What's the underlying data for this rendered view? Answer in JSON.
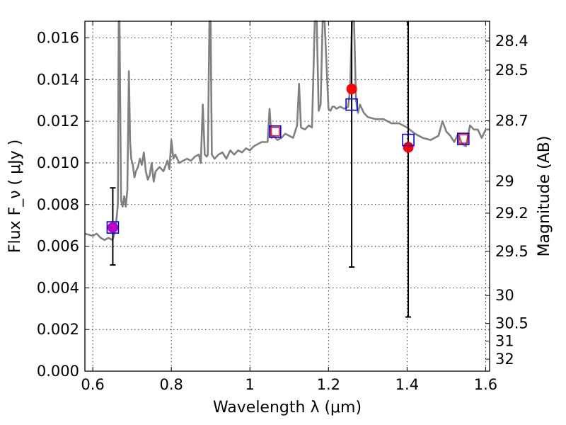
{
  "chart_data": {
    "type": "scatter",
    "xlabel": "Wavelength  λ (μm)",
    "ylabel": "Flux  F_ν  ( μJy )",
    "y2label": "Magnitude (AB)",
    "xlim": [
      0.58,
      1.61
    ],
    "ylim": [
      0.0,
      0.0168
    ],
    "grid": true,
    "x_ticks": [
      {
        "value": 0.6,
        "label": "0.6"
      },
      {
        "value": 0.8,
        "label": "0.8"
      },
      {
        "value": 1.0,
        "label": "1"
      },
      {
        "value": 1.2,
        "label": "1.2"
      },
      {
        "value": 1.4,
        "label": "1.4"
      },
      {
        "value": 1.6,
        "label": "1.6"
      }
    ],
    "y_ticks": [
      {
        "value": 0.0,
        "label": "0.000"
      },
      {
        "value": 0.002,
        "label": "0.002"
      },
      {
        "value": 0.004,
        "label": "0.004"
      },
      {
        "value": 0.006,
        "label": "0.006"
      },
      {
        "value": 0.008,
        "label": "0.008"
      },
      {
        "value": 0.01,
        "label": "0.010"
      },
      {
        "value": 0.012,
        "label": "0.012"
      },
      {
        "value": 0.014,
        "label": "0.014"
      },
      {
        "value": 0.016,
        "label": "0.016"
      }
    ],
    "y2_ticks": [
      {
        "value": 28.4,
        "label": "28.4"
      },
      {
        "value": 28.5,
        "label": "28.5"
      },
      {
        "value": 28.7,
        "label": "28.7"
      },
      {
        "value": 29.0,
        "label": "29"
      },
      {
        "value": 29.2,
        "label": "29.2"
      },
      {
        "value": 29.5,
        "label": "29.5"
      },
      {
        "value": 30.0,
        "label": "30"
      },
      {
        "value": 30.5,
        "label": "30.5"
      },
      {
        "value": 31.0,
        "label": "31"
      },
      {
        "value": 32.0,
        "label": "32"
      }
    ],
    "model_spectrum": {
      "color": "#808080",
      "x": [
        0.58,
        0.6,
        0.61,
        0.62,
        0.63,
        0.64,
        0.65,
        0.655,
        0.66,
        0.664,
        0.666,
        0.668,
        0.672,
        0.676,
        0.68,
        0.684,
        0.688,
        0.692,
        0.695,
        0.698,
        0.702,
        0.706,
        0.71,
        0.715,
        0.72,
        0.725,
        0.73,
        0.735,
        0.74,
        0.745,
        0.75,
        0.755,
        0.76,
        0.77,
        0.78,
        0.79,
        0.795,
        0.8,
        0.805,
        0.81,
        0.82,
        0.83,
        0.84,
        0.85,
        0.86,
        0.87,
        0.875,
        0.88,
        0.885,
        0.89,
        0.893,
        0.897,
        0.9,
        0.903,
        0.91,
        0.92,
        0.93,
        0.94,
        0.95,
        0.96,
        0.97,
        0.98,
        0.99,
        1.0,
        1.01,
        1.02,
        1.03,
        1.045,
        1.05,
        1.055,
        1.06,
        1.07,
        1.08,
        1.09,
        1.1,
        1.11,
        1.12,
        1.125,
        1.13,
        1.14,
        1.15,
        1.158,
        1.165,
        1.17,
        1.175,
        1.18,
        1.185,
        1.19,
        1.2,
        1.205,
        1.21,
        1.215,
        1.22,
        1.23,
        1.24,
        1.25,
        1.255,
        1.26,
        1.265,
        1.27,
        1.275,
        1.28,
        1.29,
        1.3,
        1.32,
        1.34,
        1.36,
        1.38,
        1.4,
        1.42,
        1.44,
        1.46,
        1.48,
        1.49,
        1.5,
        1.51,
        1.52,
        1.53,
        1.54,
        1.55,
        1.56,
        1.57,
        1.58,
        1.59,
        1.6,
        1.61
      ],
      "y": [
        0.0066,
        0.0065,
        0.0066,
        0.0064,
        0.0063,
        0.0064,
        0.0063,
        0.0066,
        0.0072,
        0.008,
        0.0168,
        0.0168,
        0.0082,
        0.0079,
        0.0084,
        0.0079,
        0.0087,
        0.0144,
        0.011,
        0.0102,
        0.0099,
        0.0093,
        0.0096,
        0.0098,
        0.0102,
        0.0099,
        0.0105,
        0.0096,
        0.0092,
        0.0094,
        0.01,
        0.0091,
        0.0096,
        0.0098,
        0.0096,
        0.0101,
        0.0097,
        0.0111,
        0.0102,
        0.0104,
        0.01,
        0.0101,
        0.0102,
        0.0101,
        0.0103,
        0.0104,
        0.01,
        0.0128,
        0.0104,
        0.0103,
        0.0104,
        0.0168,
        0.0168,
        0.0104,
        0.0102,
        0.0104,
        0.0105,
        0.0102,
        0.0106,
        0.0104,
        0.0106,
        0.0105,
        0.0107,
        0.0106,
        0.0108,
        0.0109,
        0.011,
        0.011,
        0.0126,
        0.0112,
        0.0113,
        0.0111,
        0.0112,
        0.0114,
        0.0113,
        0.0112,
        0.0118,
        0.0138,
        0.0117,
        0.0116,
        0.0118,
        0.0117,
        0.0168,
        0.0168,
        0.0125,
        0.0128,
        0.0168,
        0.0168,
        0.0126,
        0.0125,
        0.0127,
        0.0127,
        0.0126,
        0.0127,
        0.0126,
        0.0127,
        0.0136,
        0.0168,
        0.0168,
        0.013,
        0.0124,
        0.0128,
        0.0124,
        0.0122,
        0.0121,
        0.0121,
        0.0119,
        0.0119,
        0.0117,
        0.0114,
        0.0112,
        0.0111,
        0.0113,
        0.012,
        0.0115,
        0.0113,
        0.011,
        0.0114,
        0.0109,
        0.0108,
        0.0118,
        0.0116,
        0.0116,
        0.0112,
        0.0116,
        0.0116
      ]
    },
    "model_points": {
      "marker": "square",
      "color": "#0000ff",
      "x": [
        0.651,
        1.064,
        1.259,
        1.403,
        1.543
      ],
      "y": [
        0.0069,
        0.0115,
        0.0128,
        0.0111,
        0.01115
      ]
    },
    "observed_points": {
      "marker": "circle",
      "color": "#ff0000",
      "overlap_color": "#c000c0",
      "x": [
        0.651,
        1.064,
        1.259,
        1.403,
        1.543
      ],
      "y": [
        0.0069,
        0.0115,
        0.01355,
        0.01075,
        0.01115
      ],
      "yerr_low": [
        0.0051,
        0.0115,
        0.005,
        0.0026,
        0.01115
      ],
      "yerr_high": [
        0.0088,
        0.0115,
        0.0168,
        0.0168,
        0.01115
      ]
    }
  }
}
